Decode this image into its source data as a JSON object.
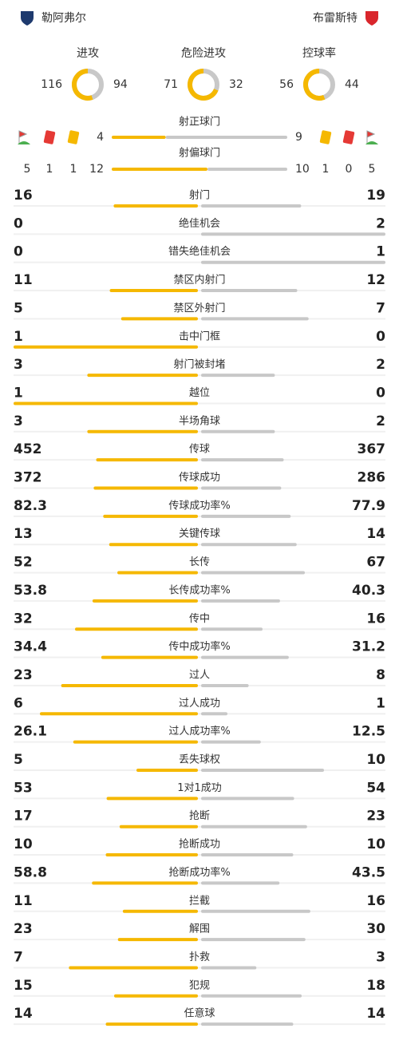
{
  "header": {
    "home": {
      "name": "勒阿弗尔"
    },
    "away": {
      "name": "布雷斯特"
    }
  },
  "donuts": [
    {
      "label": "进攻",
      "home": 116,
      "away": 94
    },
    {
      "label": "危险进攻",
      "home": 71,
      "away": 32
    },
    {
      "label": "控球率",
      "home": 56,
      "away": 44
    }
  ],
  "summary": {
    "home": {
      "corners": 5,
      "red_cards": 1,
      "yellow_cards": 1
    },
    "away": {
      "corners": 5,
      "red_cards": 0,
      "yellow_cards": 1
    },
    "shots_on_target": {
      "label": "射正球门",
      "home": 4,
      "away": 9
    },
    "shots_off_target": {
      "label": "射偏球门",
      "home": 12,
      "away": 10
    }
  },
  "stats": [
    {
      "label": "射门",
      "home": 16,
      "away": 19
    },
    {
      "label": "绝佳机会",
      "home": 0,
      "away": 2
    },
    {
      "label": "错失绝佳机会",
      "home": 0,
      "away": 1
    },
    {
      "label": "禁区内射门",
      "home": 11,
      "away": 12
    },
    {
      "label": "禁区外射门",
      "home": 5,
      "away": 7
    },
    {
      "label": "击中门框",
      "home": 1,
      "away": 0
    },
    {
      "label": "射门被封堵",
      "home": 3,
      "away": 2
    },
    {
      "label": "越位",
      "home": 1,
      "away": 0
    },
    {
      "label": "半场角球",
      "home": 3,
      "away": 2
    },
    {
      "label": "传球",
      "home": 452,
      "away": 367
    },
    {
      "label": "传球成功",
      "home": 372,
      "away": 286
    },
    {
      "label": "传球成功率%",
      "home": 82.3,
      "away": 77.9
    },
    {
      "label": "关键传球",
      "home": 13,
      "away": 14
    },
    {
      "label": "长传",
      "home": 52,
      "away": 67
    },
    {
      "label": "长传成功率%",
      "home": 53.8,
      "away": 40.3
    },
    {
      "label": "传中",
      "home": 32,
      "away": 16
    },
    {
      "label": "传中成功率%",
      "home": 34.4,
      "away": 31.2
    },
    {
      "label": "过人",
      "home": 23,
      "away": 8
    },
    {
      "label": "过人成功",
      "home": 6,
      "away": 1
    },
    {
      "label": "过人成功率%",
      "home": 26.1,
      "away": 12.5
    },
    {
      "label": "丢失球权",
      "home": 5,
      "away": 10
    },
    {
      "label": "1对1成功",
      "home": 53,
      "away": 54
    },
    {
      "label": "抢断",
      "home": 17,
      "away": 23
    },
    {
      "label": "抢断成功",
      "home": 10,
      "away": 10
    },
    {
      "label": "抢断成功率%",
      "home": 58.8,
      "away": 43.5
    },
    {
      "label": "拦截",
      "home": 11,
      "away": 16
    },
    {
      "label": "解围",
      "home": 23,
      "away": 30
    },
    {
      "label": "扑救",
      "home": 7,
      "away": 3
    },
    {
      "label": "犯规",
      "home": 15,
      "away": 18
    },
    {
      "label": "任意球",
      "home": 14,
      "away": 14
    }
  ]
}
